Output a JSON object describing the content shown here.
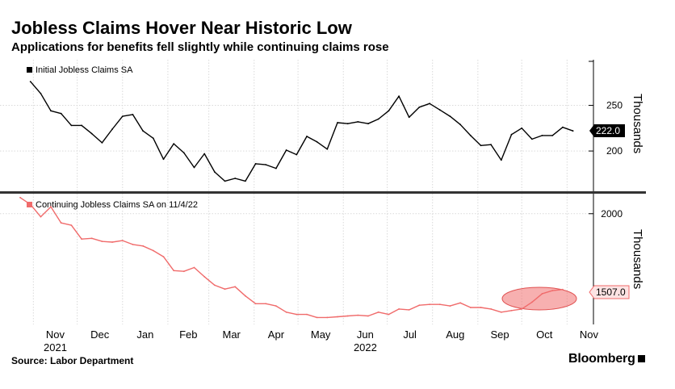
{
  "header": {
    "title": "Jobless Claims Hover Near Historic Low",
    "subtitle": "Applications for benefits fell slightly while continuing claims rose"
  },
  "footer": {
    "source": "Source: Labor Department",
    "brand": "Bloomberg"
  },
  "colors": {
    "initial_line": "#000000",
    "continuing_line": "#f06b6b",
    "continuing_label_bg": "#fce3e3",
    "highlight_ellipse": "#f07070",
    "grid": "#d9d9d9"
  },
  "chart_data": [
    {
      "type": "line",
      "legend": "Initial Jobless Claims SA",
      "ylabel": "Thousands",
      "yticks": [
        200,
        250
      ],
      "ylim": [
        155,
        300
      ],
      "last_value_label": "222.0",
      "x_axis": {
        "tick_labels": [
          "Nov",
          "Dec",
          "Jan",
          "Feb",
          "Mar",
          "Apr",
          "May",
          "Jun",
          "Jul",
          "Aug",
          "Sep",
          "Oct",
          "Nov"
        ],
        "year_labels": [
          {
            "label": "2021",
            "month": "Nov"
          },
          {
            "label": "2022",
            "month": "Jun"
          }
        ]
      },
      "x": [
        "2021-10-30",
        "2021-11-06",
        "2021-11-13",
        "2021-11-20",
        "2021-11-27",
        "2021-12-04",
        "2021-12-11",
        "2021-12-18",
        "2021-12-25",
        "2022-01-01",
        "2022-01-08",
        "2022-01-15",
        "2022-01-22",
        "2022-01-29",
        "2022-02-05",
        "2022-02-12",
        "2022-02-19",
        "2022-02-26",
        "2022-03-05",
        "2022-03-12",
        "2022-03-19",
        "2022-03-26",
        "2022-04-02",
        "2022-04-09",
        "2022-04-16",
        "2022-04-23",
        "2022-04-30",
        "2022-05-07",
        "2022-05-14",
        "2022-05-21",
        "2022-05-28",
        "2022-06-04",
        "2022-06-11",
        "2022-06-18",
        "2022-06-25",
        "2022-07-02",
        "2022-07-09",
        "2022-07-16",
        "2022-07-23",
        "2022-07-30",
        "2022-08-06",
        "2022-08-13",
        "2022-08-20",
        "2022-08-27",
        "2022-09-03",
        "2022-09-10",
        "2022-09-17",
        "2022-09-24",
        "2022-10-01",
        "2022-10-08",
        "2022-10-15",
        "2022-10-22",
        "2022-10-29",
        "2022-11-05"
      ],
      "values": [
        276,
        263,
        244,
        241,
        228,
        228,
        219,
        209,
        224,
        238,
        240,
        222,
        214,
        191,
        208,
        198,
        182,
        197,
        177,
        167,
        170,
        167,
        186,
        185,
        181,
        201,
        196,
        216,
        210,
        202,
        231,
        230,
        232,
        230,
        235,
        244,
        260,
        237,
        248,
        252,
        245,
        238,
        229,
        217,
        206,
        207,
        190,
        218,
        225,
        213,
        217,
        217,
        226,
        222
      ]
    },
    {
      "type": "line",
      "legend": "Continuing Jobless Claims SA on 11/4/22",
      "ylabel": "Thousands",
      "yticks": [
        2000
      ],
      "ylim": [
        1280,
        2130
      ],
      "last_value_label": "1507.0",
      "x": [
        "2021-10-23",
        "2021-10-30",
        "2021-11-06",
        "2021-11-13",
        "2021-11-20",
        "2021-11-27",
        "2021-12-04",
        "2021-12-11",
        "2021-12-18",
        "2021-12-25",
        "2022-01-01",
        "2022-01-08",
        "2022-01-15",
        "2022-01-22",
        "2022-01-29",
        "2022-02-05",
        "2022-02-12",
        "2022-02-19",
        "2022-02-26",
        "2022-03-05",
        "2022-03-12",
        "2022-03-19",
        "2022-03-26",
        "2022-04-02",
        "2022-04-09",
        "2022-04-16",
        "2022-04-23",
        "2022-04-30",
        "2022-05-07",
        "2022-05-14",
        "2022-05-21",
        "2022-05-28",
        "2022-06-04",
        "2022-06-11",
        "2022-06-18",
        "2022-06-25",
        "2022-07-02",
        "2022-07-09",
        "2022-07-16",
        "2022-07-23",
        "2022-07-30",
        "2022-08-06",
        "2022-08-13",
        "2022-08-20",
        "2022-08-27",
        "2022-09-03",
        "2022-09-10",
        "2022-09-17",
        "2022-09-24",
        "2022-10-01",
        "2022-10-08",
        "2022-10-15",
        "2022-10-22",
        "2022-10-29"
      ],
      "values": [
        2105,
        2060,
        1980,
        2045,
        1940,
        1925,
        1835,
        1840,
        1820,
        1815,
        1825,
        1800,
        1790,
        1760,
        1720,
        1630,
        1625,
        1650,
        1590,
        1535,
        1510,
        1525,
        1465,
        1415,
        1415,
        1400,
        1360,
        1345,
        1345,
        1325,
        1325,
        1330,
        1335,
        1340,
        1335,
        1360,
        1345,
        1380,
        1375,
        1405,
        1410,
        1410,
        1400,
        1420,
        1390,
        1390,
        1380,
        1360,
        1370,
        1380,
        1425,
        1480,
        1500,
        1507
      ]
    }
  ]
}
